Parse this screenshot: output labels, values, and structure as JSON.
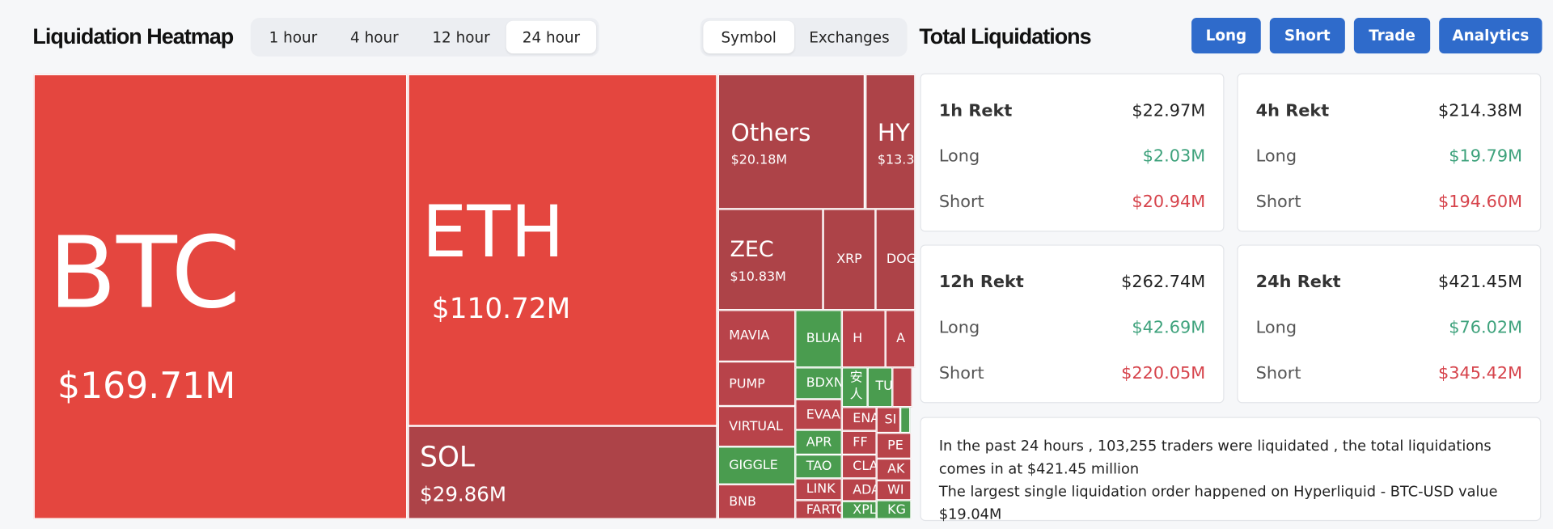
{
  "header": {
    "title": "Liquidation Heatmap",
    "tabs": [
      "1 hour",
      "4 hour",
      "12 hour",
      "24 hour"
    ],
    "view_tabs": [
      "Symbol",
      "Exchanges"
    ]
  },
  "right_header": {
    "title": "Total Liquidations",
    "buttons": [
      "Long",
      "Short",
      "Trade",
      "Analytics"
    ]
  },
  "heatmap": {
    "tiles": [
      {
        "label": "BTC",
        "value": "$169.71M"
      },
      {
        "label": "ETH",
        "value": "$110.72M"
      },
      {
        "label": "SOL",
        "value": "$29.86M"
      },
      {
        "label": "Others",
        "value": "$20.18M"
      },
      {
        "label": "HY",
        "value": "$13.3"
      },
      {
        "label": "ZEC",
        "value": "$10.83M"
      },
      {
        "label": "XRP"
      },
      {
        "label": "DOG"
      },
      {
        "label": "MAVIA"
      },
      {
        "label": "PUMP"
      },
      {
        "label": "VIRTUAL"
      },
      {
        "label": "GIGGLE"
      },
      {
        "label": "BNB"
      },
      {
        "label": "BLUA"
      },
      {
        "label": "BDXN"
      },
      {
        "label": "EVAA"
      },
      {
        "label": "APR"
      },
      {
        "label": "TAO"
      },
      {
        "label": "LINK"
      },
      {
        "label": "FARTC"
      },
      {
        "label": "H"
      },
      {
        "label": "安人"
      },
      {
        "label": "TU"
      },
      {
        "label": "ENA"
      },
      {
        "label": "SI"
      },
      {
        "label": "FF"
      },
      {
        "label": "PE"
      },
      {
        "label": "CLA"
      },
      {
        "label": "AK"
      },
      {
        "label": "ADA"
      },
      {
        "label": "WI"
      },
      {
        "label": "XPL"
      },
      {
        "label": "KG"
      },
      {
        "label": "A"
      }
    ]
  },
  "cards": [
    {
      "title": "1h Rekt",
      "total": "$22.97M",
      "rows": [
        {
          "label": "Long",
          "value": "$2.03M"
        },
        {
          "label": "Short",
          "value": "$20.94M"
        }
      ]
    },
    {
      "title": "4h Rekt",
      "total": "$214.38M",
      "rows": [
        {
          "label": "Long",
          "value": "$19.79M"
        },
        {
          "label": "Short",
          "value": "$194.60M"
        }
      ]
    },
    {
      "title": "12h Rekt",
      "total": "$262.74M",
      "rows": [
        {
          "label": "Long",
          "value": "$42.69M"
        },
        {
          "label": "Short",
          "value": "$220.05M"
        }
      ]
    },
    {
      "title": "24h Rekt",
      "total": "$421.45M",
      "rows": [
        {
          "label": "Long",
          "value": "$76.02M"
        },
        {
          "label": "Short",
          "value": "$345.42M"
        }
      ]
    }
  ],
  "summary": [
    "In the past 24 hours , 103,255 traders were liquidated , the total liquidations comes in at $421.45 million",
    "The largest single liquidation order happened on Hyperliquid - BTC-USD value $19.04M"
  ]
}
